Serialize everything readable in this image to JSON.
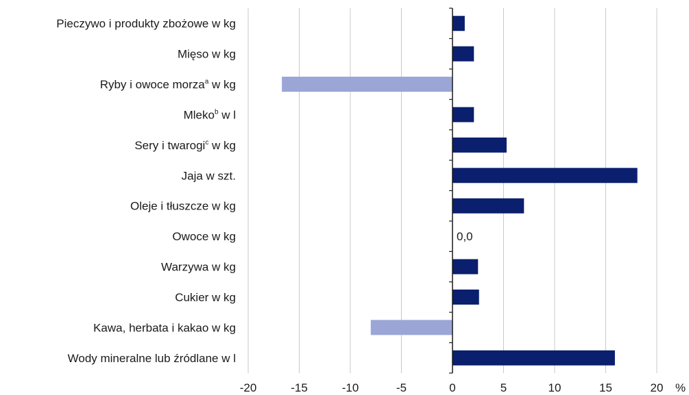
{
  "chart_data": {
    "type": "bar",
    "orientation": "horizontal",
    "categories": [
      "Pieczywo i produkty zbożowe w kg",
      "Mięso w kg",
      "Ryby i owoce morza",
      "Mleko",
      "Sery i twarogi",
      "Jaja w szt.",
      "Oleje i tłuszcze w kg",
      "Owoce w kg",
      "Warzywa w kg",
      "Cukier w kg",
      "Kawa, herbata i kakao w kg",
      "Wody mineralne lub źródlane w l"
    ],
    "category_labels": [
      {
        "main": "Pieczywo i produkty zbożowe w kg",
        "sup": "",
        "tail": ""
      },
      {
        "main": "Mięso w kg",
        "sup": "",
        "tail": ""
      },
      {
        "main": "Ryby i owoce morza",
        "sup": "a",
        "tail": " w kg"
      },
      {
        "main": "Mleko",
        "sup": "b",
        "tail": " w l"
      },
      {
        "main": "Sery i twarogi",
        "sup": "c",
        "tail": " w kg"
      },
      {
        "main": "Jaja w szt.",
        "sup": "",
        "tail": ""
      },
      {
        "main": "Oleje i tłuszcze w kg",
        "sup": "",
        "tail": ""
      },
      {
        "main": "Owoce w kg",
        "sup": "",
        "tail": ""
      },
      {
        "main": "Warzywa w kg",
        "sup": "",
        "tail": ""
      },
      {
        "main": "Cukier w kg",
        "sup": "",
        "tail": ""
      },
      {
        "main": "Kawa, herbata i kakao w kg",
        "sup": "",
        "tail": ""
      },
      {
        "main": "Wody mineralne lub źródlane w l",
        "sup": "",
        "tail": ""
      }
    ],
    "values": [
      1.2,
      2.1,
      -16.7,
      2.1,
      5.3,
      18.1,
      7.0,
      0.0,
      2.5,
      2.6,
      -8.0,
      15.9
    ],
    "data_labels": [
      {
        "index": 7,
        "text": "0,0"
      }
    ],
    "x_ticks": [
      -20,
      -15,
      -10,
      -5,
      0,
      5,
      10,
      15,
      20
    ],
    "x_tick_labels": [
      "-20",
      "-15",
      "-10",
      "-5",
      "0",
      "5",
      "10",
      "15",
      "20"
    ],
    "xlim": [
      -20,
      20
    ],
    "x_unit": "%",
    "grid": true,
    "legend": "none",
    "colors": {
      "positive": "#0a1f6e",
      "negative": "#9ba6d6",
      "grid": "#c8c8c8",
      "axis": "#1a1a1a"
    }
  }
}
